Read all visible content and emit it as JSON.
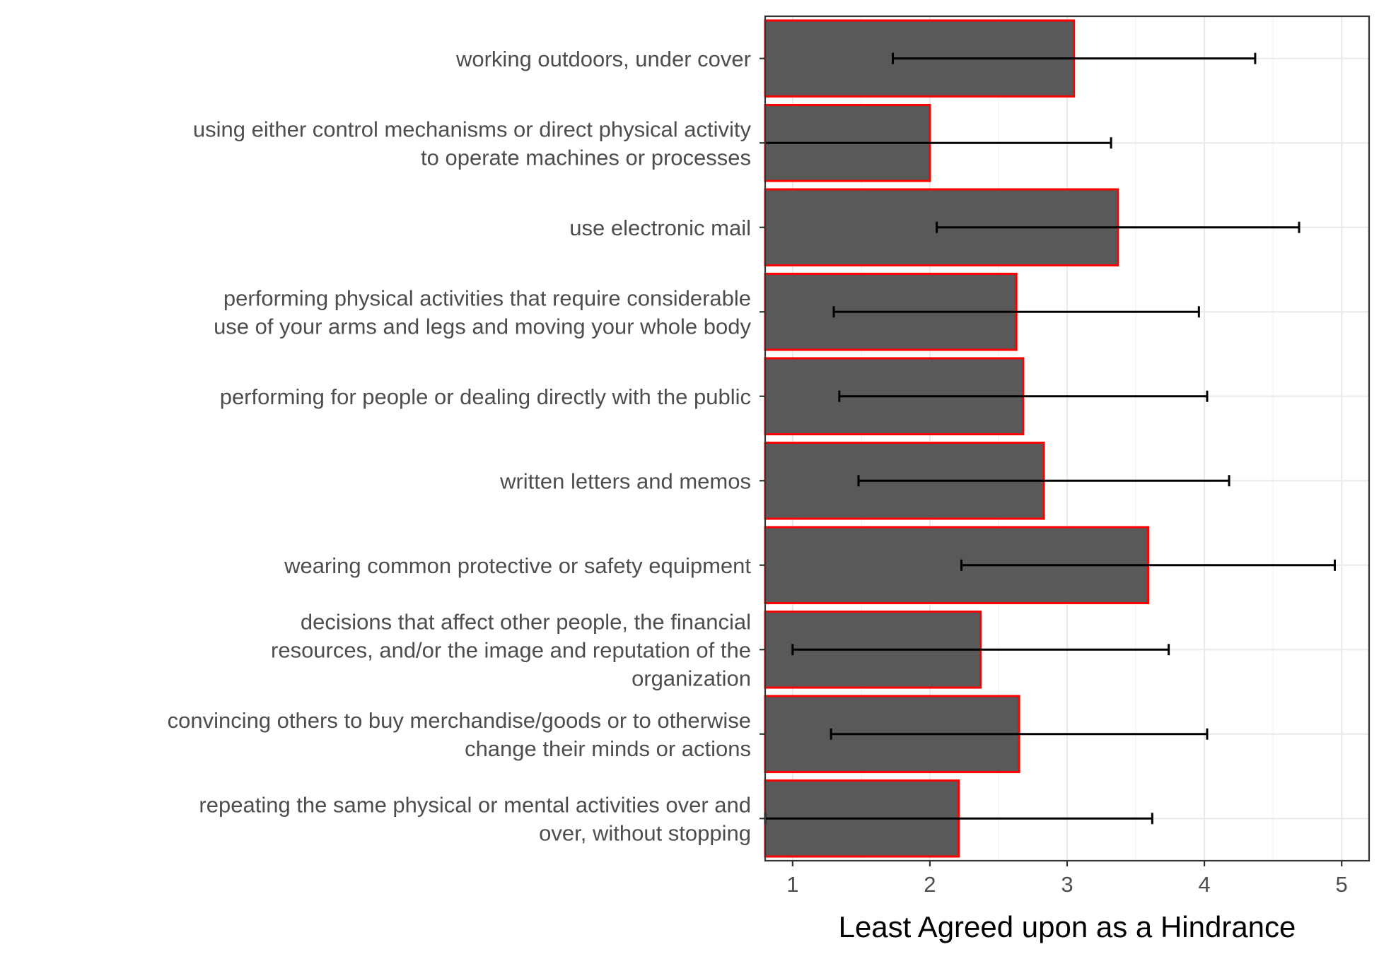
{
  "chart_data": {
    "type": "bar",
    "orientation": "horizontal",
    "title": "",
    "xlabel": "Least Agreed upon as a Hindrance",
    "ylabel": "",
    "xlim": [
      0.8,
      5.2
    ],
    "x_ticks": [
      1,
      2,
      3,
      4,
      5
    ],
    "grid": true,
    "legend": "none",
    "categories": [
      [
        "working outdoors, under cover"
      ],
      [
        "using either control mechanisms or direct physical activity",
        "to operate machines or processes"
      ],
      [
        "use electronic mail"
      ],
      [
        "performing physical activities that require considerable",
        "use of your arms and legs and moving your whole body"
      ],
      [
        "performing for people or dealing directly with the public"
      ],
      [
        "written letters and memos"
      ],
      [
        "wearing common protective or safety equipment"
      ],
      [
        "decisions that affect other people, the financial",
        "resources, and/or the image and reputation of the",
        "organization"
      ],
      [
        "convincing others to buy merchandise/goods or to otherwise",
        "change their minds or actions"
      ],
      [
        "repeating the same physical or mental activities over and",
        "over, without stopping"
      ]
    ],
    "series": [
      {
        "values": [
          3.05,
          2.0,
          3.37,
          2.63,
          2.68,
          2.83,
          3.59,
          2.37,
          2.65,
          2.21
        ],
        "error_low": [
          1.73,
          0.68,
          2.05,
          1.3,
          1.34,
          1.48,
          2.23,
          1.0,
          1.28,
          0.8
        ],
        "error_high": [
          4.37,
          3.32,
          4.69,
          3.96,
          4.02,
          4.18,
          4.95,
          3.74,
          4.02,
          3.62
        ]
      }
    ],
    "colors": {
      "bar_fill": "#595959",
      "bar_outline": "#ff0000",
      "error_bar": "#000000"
    }
  }
}
